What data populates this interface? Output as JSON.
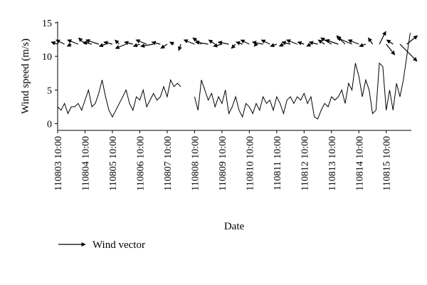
{
  "chart_data": {
    "type": "line",
    "ylabel": "Wind speed (m/s)",
    "xlabel": "Date",
    "xlim": [
      0,
      310
    ],
    "xticks": [
      {
        "value": 0,
        "label": "110803 10:00"
      },
      {
        "value": 24,
        "label": "110804 10:00"
      },
      {
        "value": 48,
        "label": "110805 10:00"
      },
      {
        "value": 72,
        "label": "110806 10:00"
      },
      {
        "value": 96,
        "label": "110807 10:00"
      },
      {
        "value": 120,
        "label": "110808 10:00"
      },
      {
        "value": 144,
        "label": "110809 10:00"
      },
      {
        "value": 168,
        "label": "110810 10:00"
      },
      {
        "value": 192,
        "label": "110811 10:00"
      },
      {
        "value": 216,
        "label": "110812 10:00"
      },
      {
        "value": 240,
        "label": "110813 10:00"
      },
      {
        "value": 264,
        "label": "110814 10:00"
      },
      {
        "value": 288,
        "label": "110815 10:00"
      }
    ],
    "ylim": [
      -1,
      15.2
    ],
    "yticks": [
      0,
      5,
      10,
      15
    ],
    "x": [
      0,
      3,
      6,
      9,
      12,
      15,
      18,
      21,
      24,
      27,
      30,
      33,
      36,
      39,
      42,
      45,
      48,
      51,
      54,
      57,
      60,
      63,
      66,
      69,
      72,
      75,
      78,
      81,
      84,
      87,
      90,
      93,
      96,
      99,
      102,
      105,
      108,
      111,
      114,
      117,
      120,
      123,
      126,
      129,
      132,
      135,
      138,
      141,
      144,
      147,
      150,
      153,
      156,
      159,
      162,
      165,
      168,
      171,
      174,
      177,
      180,
      183,
      186,
      189,
      192,
      195,
      198,
      201,
      204,
      207,
      210,
      213,
      216,
      219,
      222,
      225,
      228,
      231,
      234,
      237,
      240,
      243,
      246,
      249,
      252,
      255,
      258,
      261,
      264,
      267,
      270,
      273,
      276,
      279,
      282,
      285,
      288,
      291,
      294,
      297,
      300,
      303,
      306,
      309
    ],
    "values": [
      2.5,
      2,
      3,
      1.5,
      2.5,
      2.5,
      3,
      2,
      3.5,
      5,
      2.5,
      3,
      4.5,
      6.5,
      4,
      2,
      1,
      2,
      3,
      4,
      5,
      3,
      2,
      4,
      3.5,
      5,
      2.5,
      3.5,
      4.5,
      3.5,
      4,
      5.5,
      4,
      6.5,
      5.5,
      6,
      5.5,
      null,
      null,
      null,
      4,
      2,
      6.5,
      5,
      3.5,
      4.5,
      2.5,
      4,
      3,
      5,
      1.5,
      2.5,
      4,
      2,
      1,
      3,
      2.5,
      1.5,
      3,
      2,
      4,
      3,
      3.5,
      2,
      4,
      3,
      1.5,
      3.5,
      4,
      3,
      4,
      3.5,
      4.5,
      3,
      4,
      1,
      0.7,
      2,
      3,
      2.5,
      4,
      3.5,
      4,
      5,
      3,
      6,
      5,
      9,
      7,
      4,
      6.5,
      5,
      1.5,
      2,
      9,
      8.5,
      2,
      5,
      2,
      6,
      4,
      6.5,
      10,
      13.5
    ],
    "color": "#000000",
    "vectors": {
      "name": "Wind vector",
      "color": "#000000",
      "x": [
        0,
        6,
        12,
        18,
        24,
        30,
        36,
        42,
        48,
        54,
        60,
        66,
        72,
        78,
        84,
        90,
        96,
        102,
        108,
        114,
        120,
        126,
        132,
        138,
        144,
        150,
        156,
        162,
        168,
        174,
        180,
        186,
        192,
        198,
        204,
        210,
        216,
        222,
        228,
        234,
        240,
        246,
        252,
        258,
        264,
        270,
        276,
        282,
        288,
        294,
        300,
        306
      ],
      "u": [
        -3,
        -4,
        -2,
        -5,
        -3,
        -4,
        -6,
        -3,
        -4,
        -2,
        -5,
        -4,
        -3,
        -5,
        -6,
        -4,
        -3,
        -2,
        -1,
        null,
        -5,
        -4,
        -6,
        -3,
        -4,
        -5,
        -2,
        -3,
        -4,
        -1,
        -5,
        -4,
        -3,
        -2,
        -4,
        -5,
        -3,
        -2,
        -4,
        -3,
        -5,
        -6,
        -4,
        -7,
        -5,
        -3,
        -2,
        3,
        4,
        -3,
        8,
        5
      ],
      "v": [
        1,
        2,
        -1,
        2,
        3,
        1,
        2,
        -1,
        1,
        2,
        -2,
        1,
        -1,
        2,
        -1,
        1,
        -2,
        1,
        -3,
        null,
        2,
        3,
        1,
        2,
        -1,
        1,
        -2,
        1,
        2,
        -1,
        1,
        2,
        -1,
        -1,
        1,
        2,
        1,
        -1,
        1,
        2,
        3,
        2,
        4,
        3,
        2,
        -1,
        3,
        6,
        -5,
        2,
        -8,
        4
      ]
    }
  }
}
